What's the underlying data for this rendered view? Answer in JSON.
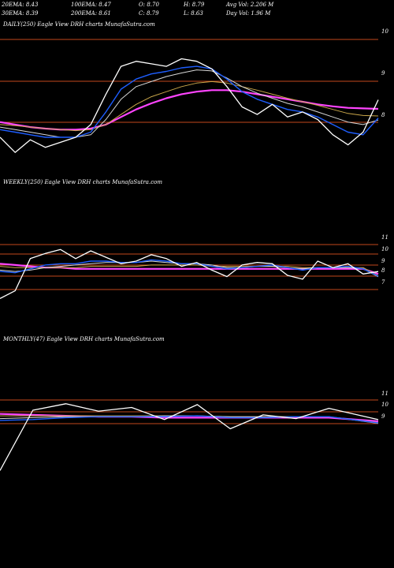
{
  "header": {
    "row1": [
      "20EMA: 8.43",
      "100EMA: 8.47",
      "O: 8.70",
      "H: 8.79",
      "Avg Vol: 2.206  M"
    ],
    "row2": [
      "30EMA: 8.39",
      "200EMA: 8.61",
      "C: 8.79",
      "L: 8.63",
      "Day Vol: 1.96  M"
    ]
  },
  "colors": {
    "background": "#000000",
    "price": "#ffffff",
    "ema20": "#1e5eff",
    "ema30": "#d8d8d8",
    "ema100": "#c9a64a",
    "ema200": "#ff44ff",
    "gridline": "#c2491b"
  },
  "chart_data": [
    {
      "type": "line",
      "title": "DAILY(250) Eagle  View  DRH charts MunafaSutra.com",
      "yticks": [
        10,
        9,
        8
      ],
      "ylim": [
        7.8,
        10.2
      ],
      "x": [
        0,
        10,
        20,
        30,
        40,
        50,
        60,
        70,
        80,
        90,
        100,
        110,
        120,
        130,
        140,
        150,
        160,
        170,
        180,
        190,
        200,
        210,
        220,
        230,
        240,
        250
      ],
      "series": [
        {
          "key": "price",
          "values": [
            8.05,
            7.75,
            8.0,
            7.85,
            7.95,
            8.05,
            8.3,
            8.9,
            9.45,
            9.55,
            9.5,
            9.45,
            9.6,
            9.55,
            9.4,
            9.05,
            8.65,
            8.5,
            8.7,
            8.45,
            8.55,
            8.4,
            8.1,
            7.9,
            8.15,
            8.79
          ]
        },
        {
          "key": "ema20",
          "values": [
            8.2,
            8.15,
            8.1,
            8.05,
            8.05,
            8.05,
            8.15,
            8.55,
            9.0,
            9.2,
            9.3,
            9.35,
            9.42,
            9.45,
            9.4,
            9.2,
            8.95,
            8.8,
            8.7,
            8.6,
            8.55,
            8.45,
            8.3,
            8.15,
            8.1,
            8.43
          ]
        },
        {
          "key": "ema30",
          "values": [
            8.25,
            8.2,
            8.15,
            8.1,
            8.05,
            8.05,
            8.1,
            8.4,
            8.8,
            9.05,
            9.15,
            9.25,
            9.32,
            9.38,
            9.36,
            9.22,
            9.05,
            8.92,
            8.82,
            8.72,
            8.65,
            8.55,
            8.45,
            8.35,
            8.3,
            8.39
          ]
        },
        {
          "key": "ema100",
          "values": [
            8.3,
            8.28,
            8.25,
            8.22,
            8.2,
            8.18,
            8.2,
            8.3,
            8.5,
            8.7,
            8.85,
            8.95,
            9.05,
            9.12,
            9.15,
            9.12,
            9.05,
            8.98,
            8.9,
            8.82,
            8.75,
            8.68,
            8.6,
            8.52,
            8.48,
            8.47
          ]
        },
        {
          "key": "ema200",
          "values": [
            8.35,
            8.3,
            8.25,
            8.22,
            8.2,
            8.2,
            8.22,
            8.3,
            8.45,
            8.6,
            8.72,
            8.82,
            8.9,
            8.95,
            8.98,
            8.98,
            8.95,
            8.9,
            8.85,
            8.8,
            8.75,
            8.7,
            8.66,
            8.63,
            8.62,
            8.61
          ]
        }
      ]
    },
    {
      "type": "line",
      "title": "WEEKLY(250) Eagle  View  DRH charts MunafaSutra.com",
      "yticks": [
        11,
        10,
        9,
        8,
        7
      ],
      "ylim": [
        6.6,
        11.5
      ],
      "x": [
        0,
        10,
        20,
        30,
        40,
        50,
        60,
        70,
        80,
        90,
        100,
        110,
        120,
        130,
        140,
        150,
        160,
        170,
        180,
        190,
        200,
        210,
        220,
        230,
        240,
        250
      ],
      "series": [
        {
          "key": "price",
          "values": [
            6.7,
            7.3,
            9.8,
            10.2,
            10.5,
            9.8,
            10.4,
            9.9,
            9.4,
            9.6,
            10.1,
            9.8,
            9.2,
            9.5,
            8.9,
            8.4,
            9.3,
            9.5,
            9.4,
            8.5,
            8.2,
            9.6,
            9.1,
            9.4,
            8.6,
            8.79
          ]
        },
        {
          "key": "ema20",
          "values": [
            8.8,
            8.7,
            9.0,
            9.3,
            9.4,
            9.4,
            9.6,
            9.6,
            9.5,
            9.5,
            9.7,
            9.6,
            9.4,
            9.4,
            9.2,
            9.0,
            9.1,
            9.2,
            9.3,
            9.1,
            8.9,
            9.1,
            9.1,
            9.2,
            9.0,
            8.43
          ]
        },
        {
          "key": "ema30",
          "values": [
            8.9,
            8.8,
            8.9,
            9.1,
            9.2,
            9.3,
            9.4,
            9.5,
            9.5,
            9.5,
            9.6,
            9.5,
            9.4,
            9.4,
            9.3,
            9.1,
            9.1,
            9.2,
            9.2,
            9.1,
            9.0,
            9.1,
            9.1,
            9.1,
            9.0,
            8.39
          ]
        },
        {
          "key": "ema100",
          "values": [
            9.2,
            9.1,
            9.1,
            9.1,
            9.1,
            9.1,
            9.2,
            9.2,
            9.2,
            9.2,
            9.3,
            9.3,
            9.3,
            9.3,
            9.2,
            9.2,
            9.2,
            9.2,
            9.2,
            9.2,
            9.1,
            9.1,
            9.1,
            9.1,
            9.1,
            8.47
          ]
        },
        {
          "key": "ema200",
          "values": [
            9.4,
            9.3,
            9.2,
            9.1,
            9.1,
            9.0,
            9.0,
            9.0,
            9.0,
            9.0,
            9.0,
            9.0,
            9.0,
            9.0,
            9.0,
            9.0,
            9.0,
            9.0,
            9.0,
            9.0,
            9.0,
            9.0,
            9.0,
            9.0,
            9.0,
            8.61
          ]
        }
      ]
    },
    {
      "type": "line",
      "title": "MONTHLY(47) Eagle  View  DRH charts MunafaSutra.com",
      "yticks": [
        11,
        10,
        9
      ],
      "ylim": [
        3.0,
        11.5
      ],
      "x": [
        0,
        4,
        8,
        12,
        16,
        20,
        24,
        28,
        32,
        36,
        40,
        46
      ],
      "series": [
        {
          "key": "price",
          "values": [
            3.3,
            9.8,
            10.5,
            9.7,
            10.1,
            8.8,
            10.4,
            7.8,
            9.3,
            8.9,
            10.0,
            8.79
          ]
        },
        {
          "key": "ema20",
          "values": [
            8.7,
            8.8,
            9.0,
            9.1,
            9.1,
            9.1,
            9.2,
            9.0,
            9.0,
            9.1,
            9.1,
            8.43
          ]
        },
        {
          "key": "ema30",
          "values": [
            8.9,
            9.0,
            9.1,
            9.1,
            9.1,
            9.2,
            9.2,
            9.1,
            9.1,
            9.1,
            9.1,
            8.39
          ]
        },
        {
          "key": "ema100",
          "values": [
            9.2,
            9.2,
            9.2,
            9.2,
            9.2,
            9.2,
            9.2,
            9.1,
            9.1,
            9.1,
            9.1,
            8.47
          ]
        },
        {
          "key": "ema200",
          "values": [
            9.4,
            9.3,
            9.2,
            9.1,
            9.1,
            9.0,
            9.0,
            9.0,
            9.0,
            9.0,
            9.0,
            8.61
          ]
        }
      ]
    }
  ]
}
